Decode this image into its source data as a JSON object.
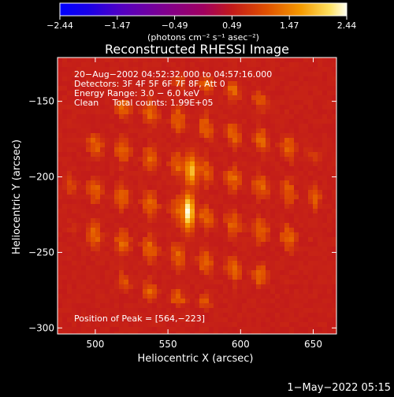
{
  "chart_data": {
    "type": "heatmap",
    "title": "Reconstructed RHESSI Image",
    "xlabel": "Heliocentric X (arcsec)",
    "ylabel": "Heliocentric Y (arcsec)",
    "xlim": [
      474,
      666
    ],
    "ylim": [
      -304,
      -121
    ],
    "xticks": [
      500,
      550,
      600,
      650
    ],
    "yticks": [
      -150,
      -200,
      -250,
      -300
    ],
    "x_tick_labels": [
      "500",
      "550",
      "600",
      "650"
    ],
    "y_tick_labels": [
      "−150",
      "−200",
      "−250",
      "−300"
    ],
    "colorbar": {
      "min": -2.44,
      "max": 2.44,
      "tick_labels": [
        "−2.44",
        "−1.47",
        "−0.49",
        "0.49",
        "1.47",
        "2.44"
      ],
      "unit_label": "(photons cm⁻² s⁻¹ asec⁻²)"
    },
    "annotations": [
      "20−Aug−2002 04:52:32.000 to 04:57:16.000",
      "Detectors: 3F 4F 5F 6F 7F 8F, Att 0",
      "Energy Range: 3.0 − 6.0 keV",
      "Clean     Total counts: 1.99E+05"
    ],
    "peak_label": "Position of Peak = [564,−223]",
    "peak": {
      "x": 564,
      "y": -223,
      "value": 2.44
    },
    "secondary_source": {
      "x": 566,
      "y": -196,
      "value": 1.9
    },
    "disk": {
      "center": [
        568,
        -210
      ],
      "semi_axes": [
        94,
        82
      ],
      "mean_level": 0.5
    },
    "footer_date": "1−May−2022 05:15"
  }
}
